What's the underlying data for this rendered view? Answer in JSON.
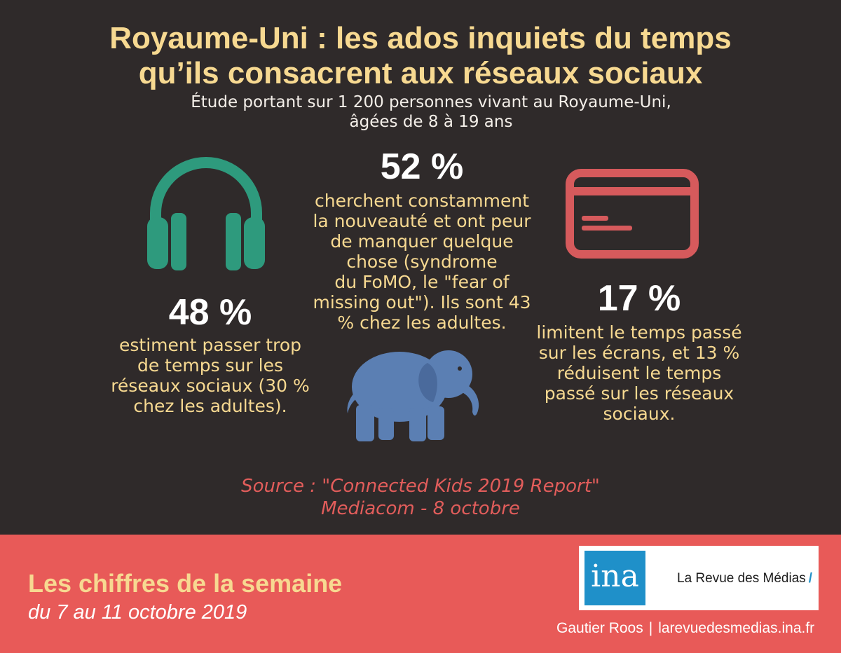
{
  "header": {
    "title_line1": "Royaume-Uni :  les ados inquiets du temps",
    "title_line2": "qu’ils consacrent aux réseaux sociaux",
    "subtitle_line1": "Étude portant sur 1 200 personnes vivant au Royaume-Uni,",
    "subtitle_line2": "âgées de 8 à 19 ans"
  },
  "stats": {
    "left": {
      "value": "48 %",
      "text_lines": [
        "estiment passer trop",
        "de temps sur les",
        "réseaux sociaux (30 %",
        "chez les adultes)."
      ],
      "icon": "headphones-icon"
    },
    "center": {
      "value": "52 %",
      "text_lines": [
        "cherchent constamment",
        "la nouveauté et ont peur",
        "de manquer quelque",
        "chose (syndrome",
        "du FoMO, le \"fear of",
        "missing out\"). Ils sont 43",
        "% chez les adultes."
      ],
      "icon": "elephant-icon"
    },
    "right": {
      "value": "17 %",
      "text_lines": [
        "limitent le temps passé",
        "sur les écrans, et 13 %",
        "réduisent le temps",
        "passé sur les réseaux",
        "sociaux."
      ],
      "icon": "credit-card-icon"
    }
  },
  "source": {
    "line1": "Source : \"Connected Kids 2019 Report\"",
    "line2": "Mediacom - 8 octobre"
  },
  "footer": {
    "title": "Les chiffres de la semaine",
    "dates": "du 7 au 11 octobre 2019",
    "logo_ina": "ina",
    "logo_revue": "La Revue des Médias",
    "logo_slash": "/",
    "author": "Gautier Roos",
    "separator": "|",
    "website": "larevuedesmedias.ina.fr"
  },
  "colors": {
    "background": "#2f2a2a",
    "title": "#f7d991",
    "accent_red": "#e85a58",
    "source": "#e25d5b",
    "headphones": "#2e9a7d",
    "card": "#d65a5c",
    "elephant": "#5b7fb3",
    "ina_blue": "#1f90c9"
  }
}
